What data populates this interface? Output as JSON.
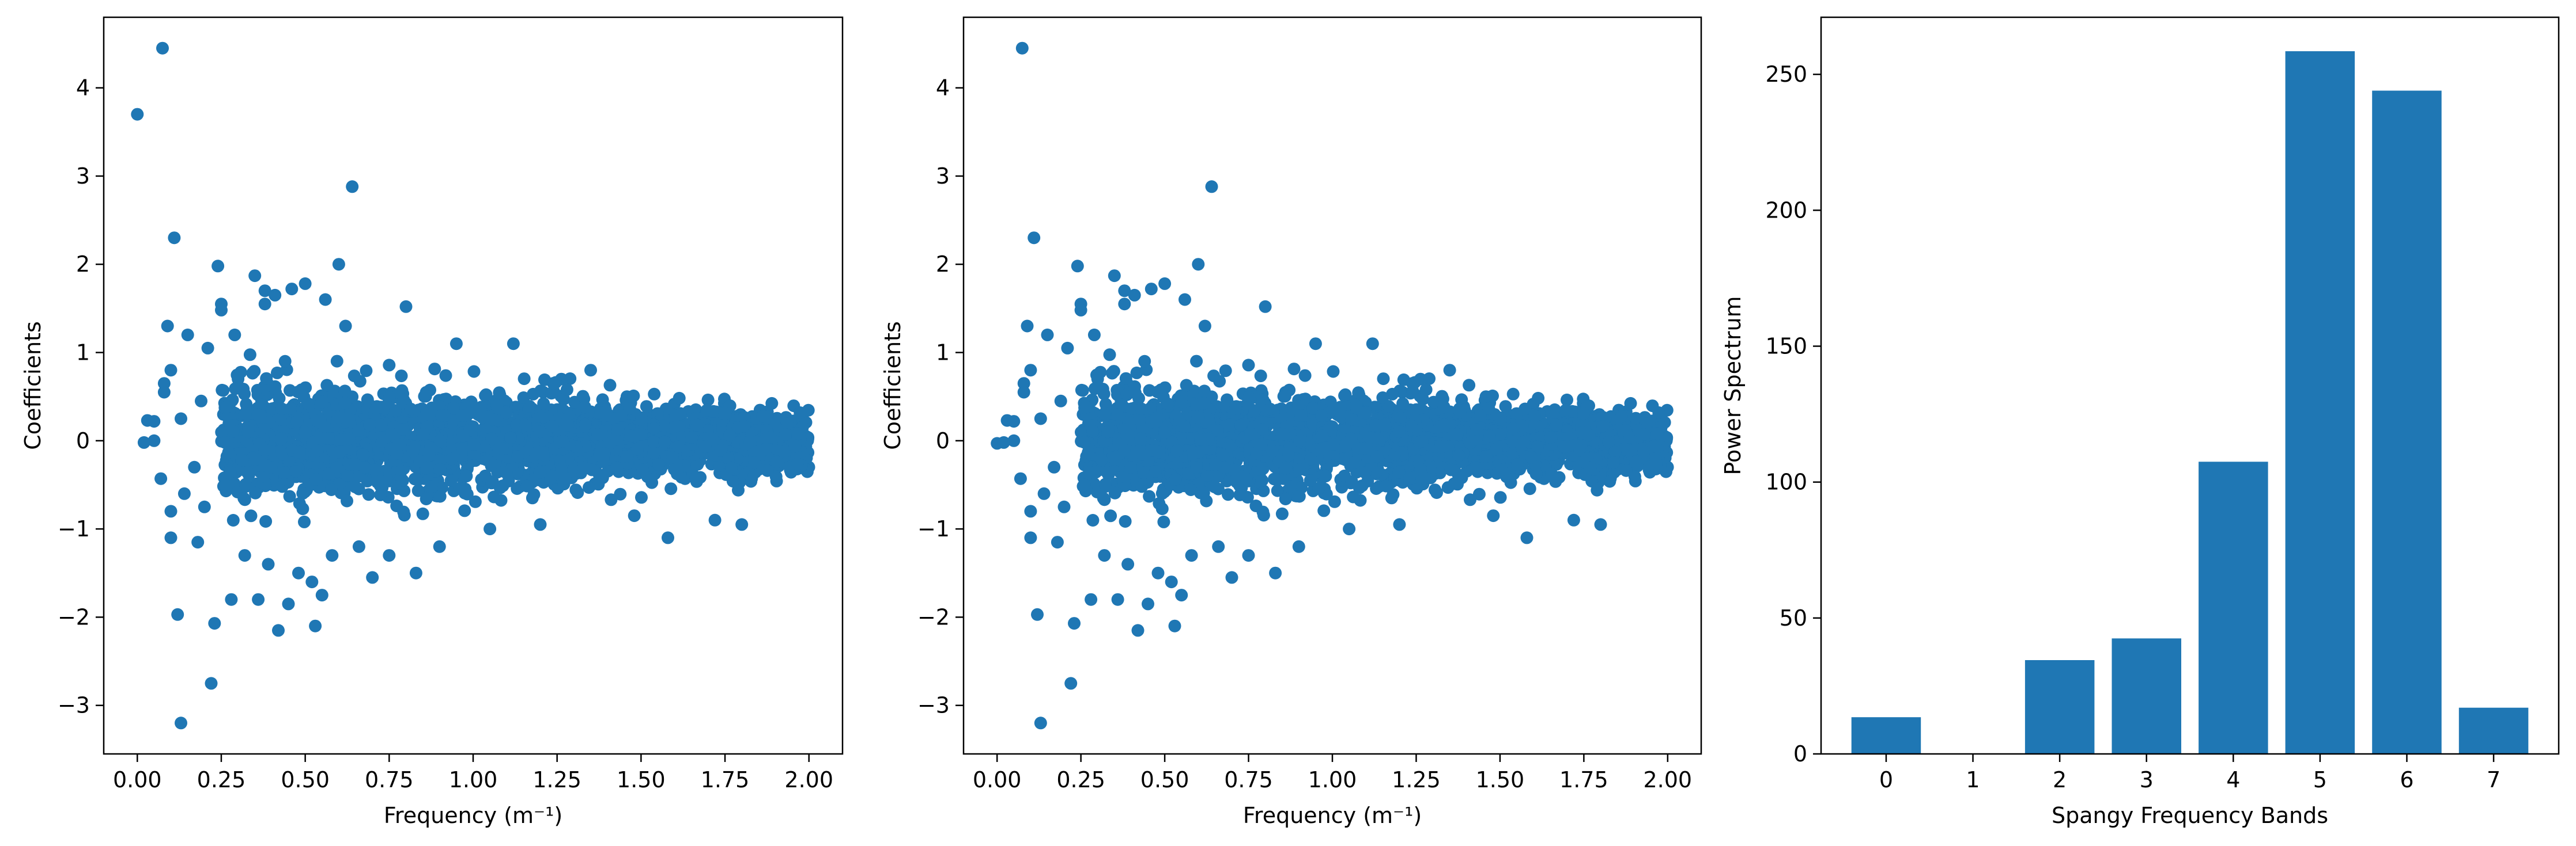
{
  "colors": {
    "marker": "#1f77b4",
    "axis": "#000000",
    "background": "#ffffff"
  },
  "chart_data": [
    {
      "type": "scatter",
      "xlabel": "Frequency (m⁻¹)",
      "ylabel": "Coefficients",
      "xlim": [
        -0.1,
        2.1
      ],
      "ylim": [
        -3.55,
        4.8
      ],
      "xticks": [
        0.0,
        0.25,
        0.5,
        0.75,
        1.0,
        1.25,
        1.5,
        1.75,
        2.0
      ],
      "xtick_labels": [
        "0.00",
        "0.25",
        "0.50",
        "0.75",
        "1.00",
        "1.25",
        "1.50",
        "1.75",
        "2.00"
      ],
      "yticks": [
        -3,
        -2,
        -1,
        0,
        1,
        2,
        3,
        4
      ],
      "ytick_labels": [
        "−3",
        "−2",
        "−1",
        "0",
        "1",
        "2",
        "3",
        "4"
      ],
      "grid": false,
      "points": [
        [
          0.0,
          3.7
        ],
        [
          0.02,
          -0.02
        ],
        [
          0.03,
          0.23
        ],
        [
          0.05,
          0.22
        ],
        [
          0.05,
          0.0
        ],
        [
          0.07,
          -0.43
        ],
        [
          0.075,
          4.45
        ],
        [
          0.08,
          0.65
        ],
        [
          0.08,
          0.55
        ],
        [
          0.09,
          1.3
        ],
        [
          0.1,
          -1.1
        ],
        [
          0.1,
          -0.8
        ],
        [
          0.1,
          0.8
        ],
        [
          0.11,
          2.3
        ],
        [
          0.12,
          -1.97
        ],
        [
          0.13,
          -3.2
        ],
        [
          0.13,
          0.25
        ],
        [
          0.14,
          -0.6
        ],
        [
          0.15,
          1.2
        ],
        [
          0.17,
          -0.3
        ],
        [
          0.18,
          -1.15
        ],
        [
          0.19,
          0.45
        ],
        [
          0.2,
          -0.75
        ],
        [
          0.21,
          1.05
        ],
        [
          0.22,
          -2.75
        ],
        [
          0.23,
          -2.07
        ],
        [
          0.24,
          1.98
        ],
        [
          0.25,
          1.55
        ],
        [
          0.25,
          1.48
        ],
        [
          0.26,
          -0.5
        ],
        [
          0.28,
          -1.8
        ],
        [
          0.29,
          1.2
        ],
        [
          0.3,
          0.7
        ],
        [
          0.32,
          -1.3
        ],
        [
          0.33,
          0.1
        ],
        [
          0.35,
          1.87
        ],
        [
          0.36,
          -1.8
        ],
        [
          0.38,
          1.7
        ],
        [
          0.38,
          1.55
        ],
        [
          0.39,
          -1.4
        ],
        [
          0.41,
          1.65
        ],
        [
          0.42,
          -2.15
        ],
        [
          0.44,
          0.9
        ],
        [
          0.45,
          -1.85
        ],
        [
          0.46,
          1.72
        ],
        [
          0.48,
          -1.5
        ],
        [
          0.5,
          1.78
        ],
        [
          0.52,
          -1.6
        ],
        [
          0.53,
          -2.1
        ],
        [
          0.55,
          -1.75
        ],
        [
          0.56,
          1.6
        ],
        [
          0.58,
          -1.3
        ],
        [
          0.6,
          2.0
        ],
        [
          0.62,
          1.3
        ],
        [
          0.64,
          2.88
        ],
        [
          0.66,
          -1.2
        ],
        [
          0.7,
          -1.55
        ],
        [
          0.75,
          -1.3
        ],
        [
          0.8,
          1.52
        ],
        [
          0.83,
          -1.5
        ],
        [
          0.9,
          -1.2
        ],
        [
          0.95,
          1.1
        ],
        [
          1.05,
          -1.0
        ],
        [
          1.12,
          1.1
        ],
        [
          1.2,
          -0.95
        ],
        [
          1.35,
          0.8
        ],
        [
          1.48,
          -0.85
        ],
        [
          1.58,
          -1.1
        ],
        [
          1.72,
          -0.9
        ],
        [
          1.8,
          -0.95
        ]
      ],
      "dense_band": {
        "x_start": 0.25,
        "x_end": 2.0,
        "spread_start": 1.0,
        "spread_end": 0.5,
        "count": 2600
      }
    },
    {
      "type": "scatter",
      "xlabel": "Frequency (m⁻¹)",
      "ylabel": "Coefficients",
      "xlim": [
        -0.1,
        2.1
      ],
      "ylim": [
        -3.55,
        4.8
      ],
      "xticks": [
        0.0,
        0.25,
        0.5,
        0.75,
        1.0,
        1.25,
        1.5,
        1.75,
        2.0
      ],
      "xtick_labels": [
        "0.00",
        "0.25",
        "0.50",
        "0.75",
        "1.00",
        "1.25",
        "1.50",
        "1.75",
        "2.00"
      ],
      "yticks": [
        -3,
        -2,
        -1,
        0,
        1,
        2,
        3,
        4
      ],
      "ytick_labels": [
        "−3",
        "−2",
        "−1",
        "0",
        "1",
        "2",
        "3",
        "4"
      ],
      "grid": false,
      "points": [
        [
          0.0,
          -0.03
        ],
        [
          0.02,
          -0.02
        ],
        [
          0.03,
          0.23
        ],
        [
          0.05,
          0.22
        ],
        [
          0.05,
          0.0
        ],
        [
          0.07,
          -0.43
        ],
        [
          0.075,
          4.45
        ],
        [
          0.08,
          0.65
        ],
        [
          0.08,
          0.55
        ],
        [
          0.09,
          1.3
        ],
        [
          0.1,
          -1.1
        ],
        [
          0.1,
          -0.8
        ],
        [
          0.1,
          0.8
        ],
        [
          0.11,
          2.3
        ],
        [
          0.12,
          -1.97
        ],
        [
          0.13,
          -3.2
        ],
        [
          0.13,
          0.25
        ],
        [
          0.14,
          -0.6
        ],
        [
          0.15,
          1.2
        ],
        [
          0.17,
          -0.3
        ],
        [
          0.18,
          -1.15
        ],
        [
          0.19,
          0.45
        ],
        [
          0.2,
          -0.75
        ],
        [
          0.21,
          1.05
        ],
        [
          0.22,
          -2.75
        ],
        [
          0.23,
          -2.07
        ],
        [
          0.24,
          1.98
        ],
        [
          0.25,
          1.55
        ],
        [
          0.25,
          1.48
        ],
        [
          0.26,
          -0.5
        ],
        [
          0.28,
          -1.8
        ],
        [
          0.29,
          1.2
        ],
        [
          0.3,
          0.7
        ],
        [
          0.32,
          -1.3
        ],
        [
          0.33,
          0.1
        ],
        [
          0.35,
          1.87
        ],
        [
          0.36,
          -1.8
        ],
        [
          0.38,
          1.7
        ],
        [
          0.38,
          1.55
        ],
        [
          0.39,
          -1.4
        ],
        [
          0.41,
          1.65
        ],
        [
          0.42,
          -2.15
        ],
        [
          0.44,
          0.9
        ],
        [
          0.45,
          -1.85
        ],
        [
          0.46,
          1.72
        ],
        [
          0.48,
          -1.5
        ],
        [
          0.5,
          1.78
        ],
        [
          0.52,
          -1.6
        ],
        [
          0.53,
          -2.1
        ],
        [
          0.55,
          -1.75
        ],
        [
          0.56,
          1.6
        ],
        [
          0.58,
          -1.3
        ],
        [
          0.6,
          2.0
        ],
        [
          0.62,
          1.3
        ],
        [
          0.64,
          2.88
        ],
        [
          0.66,
          -1.2
        ],
        [
          0.7,
          -1.55
        ],
        [
          0.75,
          -1.3
        ],
        [
          0.8,
          1.52
        ],
        [
          0.83,
          -1.5
        ],
        [
          0.9,
          -1.2
        ],
        [
          0.95,
          1.1
        ],
        [
          1.05,
          -1.0
        ],
        [
          1.12,
          1.1
        ],
        [
          1.2,
          -0.95
        ],
        [
          1.35,
          0.8
        ],
        [
          1.48,
          -0.85
        ],
        [
          1.58,
          -1.1
        ],
        [
          1.72,
          -0.9
        ],
        [
          1.8,
          -0.95
        ]
      ],
      "dense_band": {
        "x_start": 0.25,
        "x_end": 2.0,
        "spread_start": 1.0,
        "spread_end": 0.5,
        "count": 2600
      }
    },
    {
      "type": "bar",
      "xlabel": "Spangy Frequency Bands",
      "ylabel": "Power Spectrum",
      "categories": [
        "0",
        "1",
        "2",
        "3",
        "4",
        "5",
        "6",
        "7"
      ],
      "values": [
        13.5,
        0,
        34.5,
        42.5,
        107.5,
        258.5,
        244,
        17
      ],
      "xlim": [
        -0.75,
        7.75
      ],
      "ylim": [
        0,
        271
      ],
      "yticks": [
        0,
        50,
        100,
        150,
        200,
        250
      ],
      "ytick_labels": [
        "0",
        "50",
        "100",
        "150",
        "200",
        "250"
      ],
      "bar_width": 0.8,
      "grid": false
    }
  ]
}
